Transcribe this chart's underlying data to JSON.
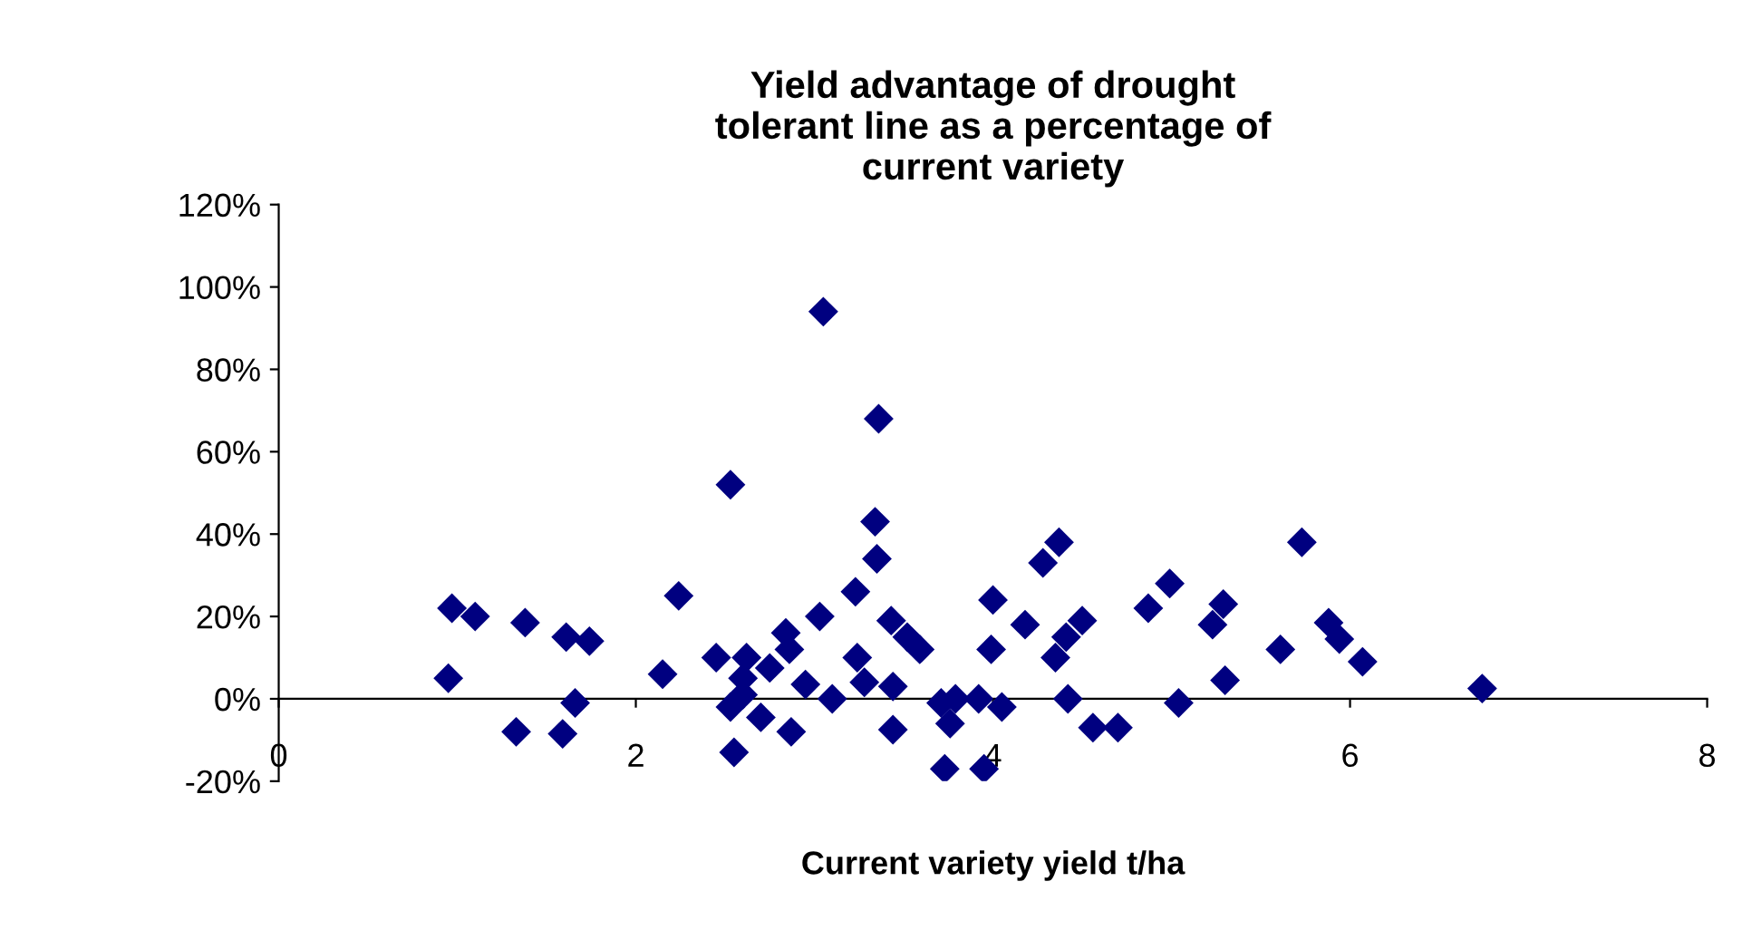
{
  "chart_data": {
    "type": "scatter",
    "title": "Yield advantage of drought\ntolerant line as a percentage of\ncurrent variety",
    "xlabel": "Current variety yield t/ha",
    "marker": "diamond",
    "grid": false,
    "legend": false,
    "xlim": [
      0,
      8
    ],
    "xticks": [
      0,
      2,
      4,
      6,
      8
    ],
    "ylim": [
      -20,
      120
    ],
    "yticks": [
      {
        "value": -20,
        "label": "-20%"
      },
      {
        "value": 0,
        "label": "0%"
      },
      {
        "value": 20,
        "label": "20%"
      },
      {
        "value": 40,
        "label": "40%"
      },
      {
        "value": 60,
        "label": "60%"
      },
      {
        "value": 80,
        "label": "80%"
      },
      {
        "value": 100,
        "label": "100%"
      },
      {
        "value": 120,
        "label": "120%"
      }
    ],
    "series": [
      {
        "color": "#000080",
        "x": [
          0.95,
          0.97,
          1.1,
          1.38,
          1.33,
          1.59,
          1.61,
          1.74,
          1.66,
          2.15,
          2.24,
          2.45,
          2.53,
          2.55,
          2.53,
          2.6,
          2.62,
          2.6,
          2.7,
          2.75,
          2.84,
          2.86,
          2.87,
          2.95,
          3.05,
          3.03,
          3.1,
          3.23,
          3.24,
          3.28,
          3.36,
          3.34,
          3.35,
          3.43,
          3.44,
          3.44,
          3.52,
          3.59,
          3.71,
          3.73,
          3.76,
          3.79,
          3.92,
          3.95,
          4.0,
          3.99,
          4.05,
          4.18,
          4.28,
          4.37,
          4.35,
          4.41,
          4.5,
          4.42,
          4.56,
          4.7,
          4.87,
          4.99,
          5.04,
          5.23,
          5.29,
          5.3,
          5.61,
          5.73,
          5.88,
          5.94,
          6.07,
          6.74
        ],
        "values": [
          5,
          22,
          20,
          18.5,
          -8,
          -8.5,
          15,
          14,
          -1,
          6,
          25,
          10,
          52,
          -13,
          -2,
          1,
          10,
          5,
          -4.5,
          7.5,
          16,
          12,
          -8,
          3.5,
          94,
          20,
          0,
          26,
          10,
          4,
          68,
          43,
          34,
          19,
          -7.5,
          3,
          15,
          12,
          -1,
          -17,
          -6,
          0,
          0,
          -17,
          24,
          12,
          -2,
          18,
          33,
          38,
          10,
          15,
          19,
          0,
          -7,
          -7,
          22,
          28,
          -1,
          18,
          23,
          4.5,
          12,
          38,
          18.5,
          14.5,
          9,
          2.5
        ]
      }
    ]
  }
}
